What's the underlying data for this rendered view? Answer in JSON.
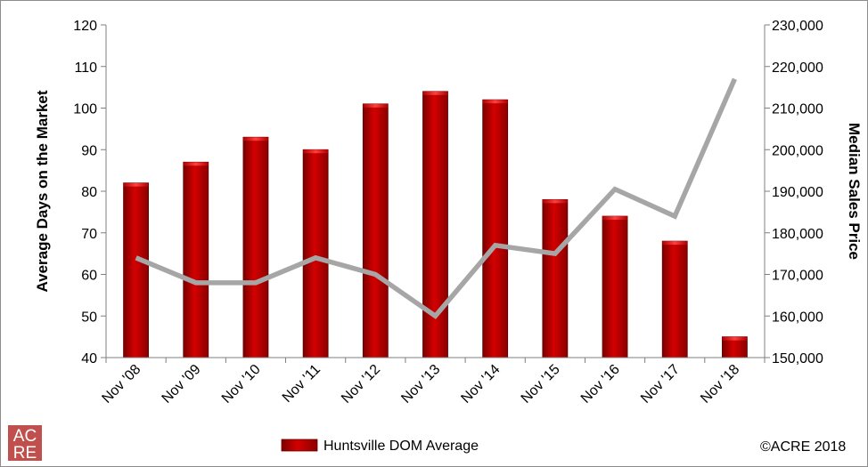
{
  "chart_data": {
    "type": "bar",
    "categories": [
      "Nov '08",
      "Nov '09",
      "Nov '10",
      "Nov '11",
      "Nov '12",
      "Nov '13",
      "Nov '14",
      "Nov '15",
      "Nov '16",
      "Nov '17",
      "Nov '18"
    ],
    "series": [
      {
        "name": "Huntsville DOM Average",
        "type": "bar",
        "axis": "left",
        "color": "#c00000",
        "values": [
          82,
          87,
          93,
          90,
          101,
          104,
          102,
          78,
          74,
          68,
          45
        ]
      },
      {
        "type": "line",
        "axis": "right",
        "color": "#a6a6a6",
        "values": [
          174000,
          168000,
          168000,
          174000,
          170000,
          160000,
          177000,
          175000,
          190500,
          184000,
          217000
        ]
      }
    ],
    "ylabel": "Average Days on the Market",
    "y2label": "Median Sales Price",
    "ylim": [
      40,
      120
    ],
    "y2lim": [
      150000,
      230000
    ],
    "yticks": [
      "40",
      "50",
      "60",
      "70",
      "80",
      "90",
      "100",
      "110",
      "120"
    ],
    "y2ticks": [
      "150,000",
      "160,000",
      "170,000",
      "180,000",
      "190,000",
      "200,000",
      "210,000",
      "220,000",
      "230,000"
    ],
    "grid": false,
    "legend_position": "bottom-center"
  },
  "copyright": "©ACRE 2018",
  "logo": {
    "line1": "AC",
    "line2": "RE",
    "color": "#c0504d"
  }
}
